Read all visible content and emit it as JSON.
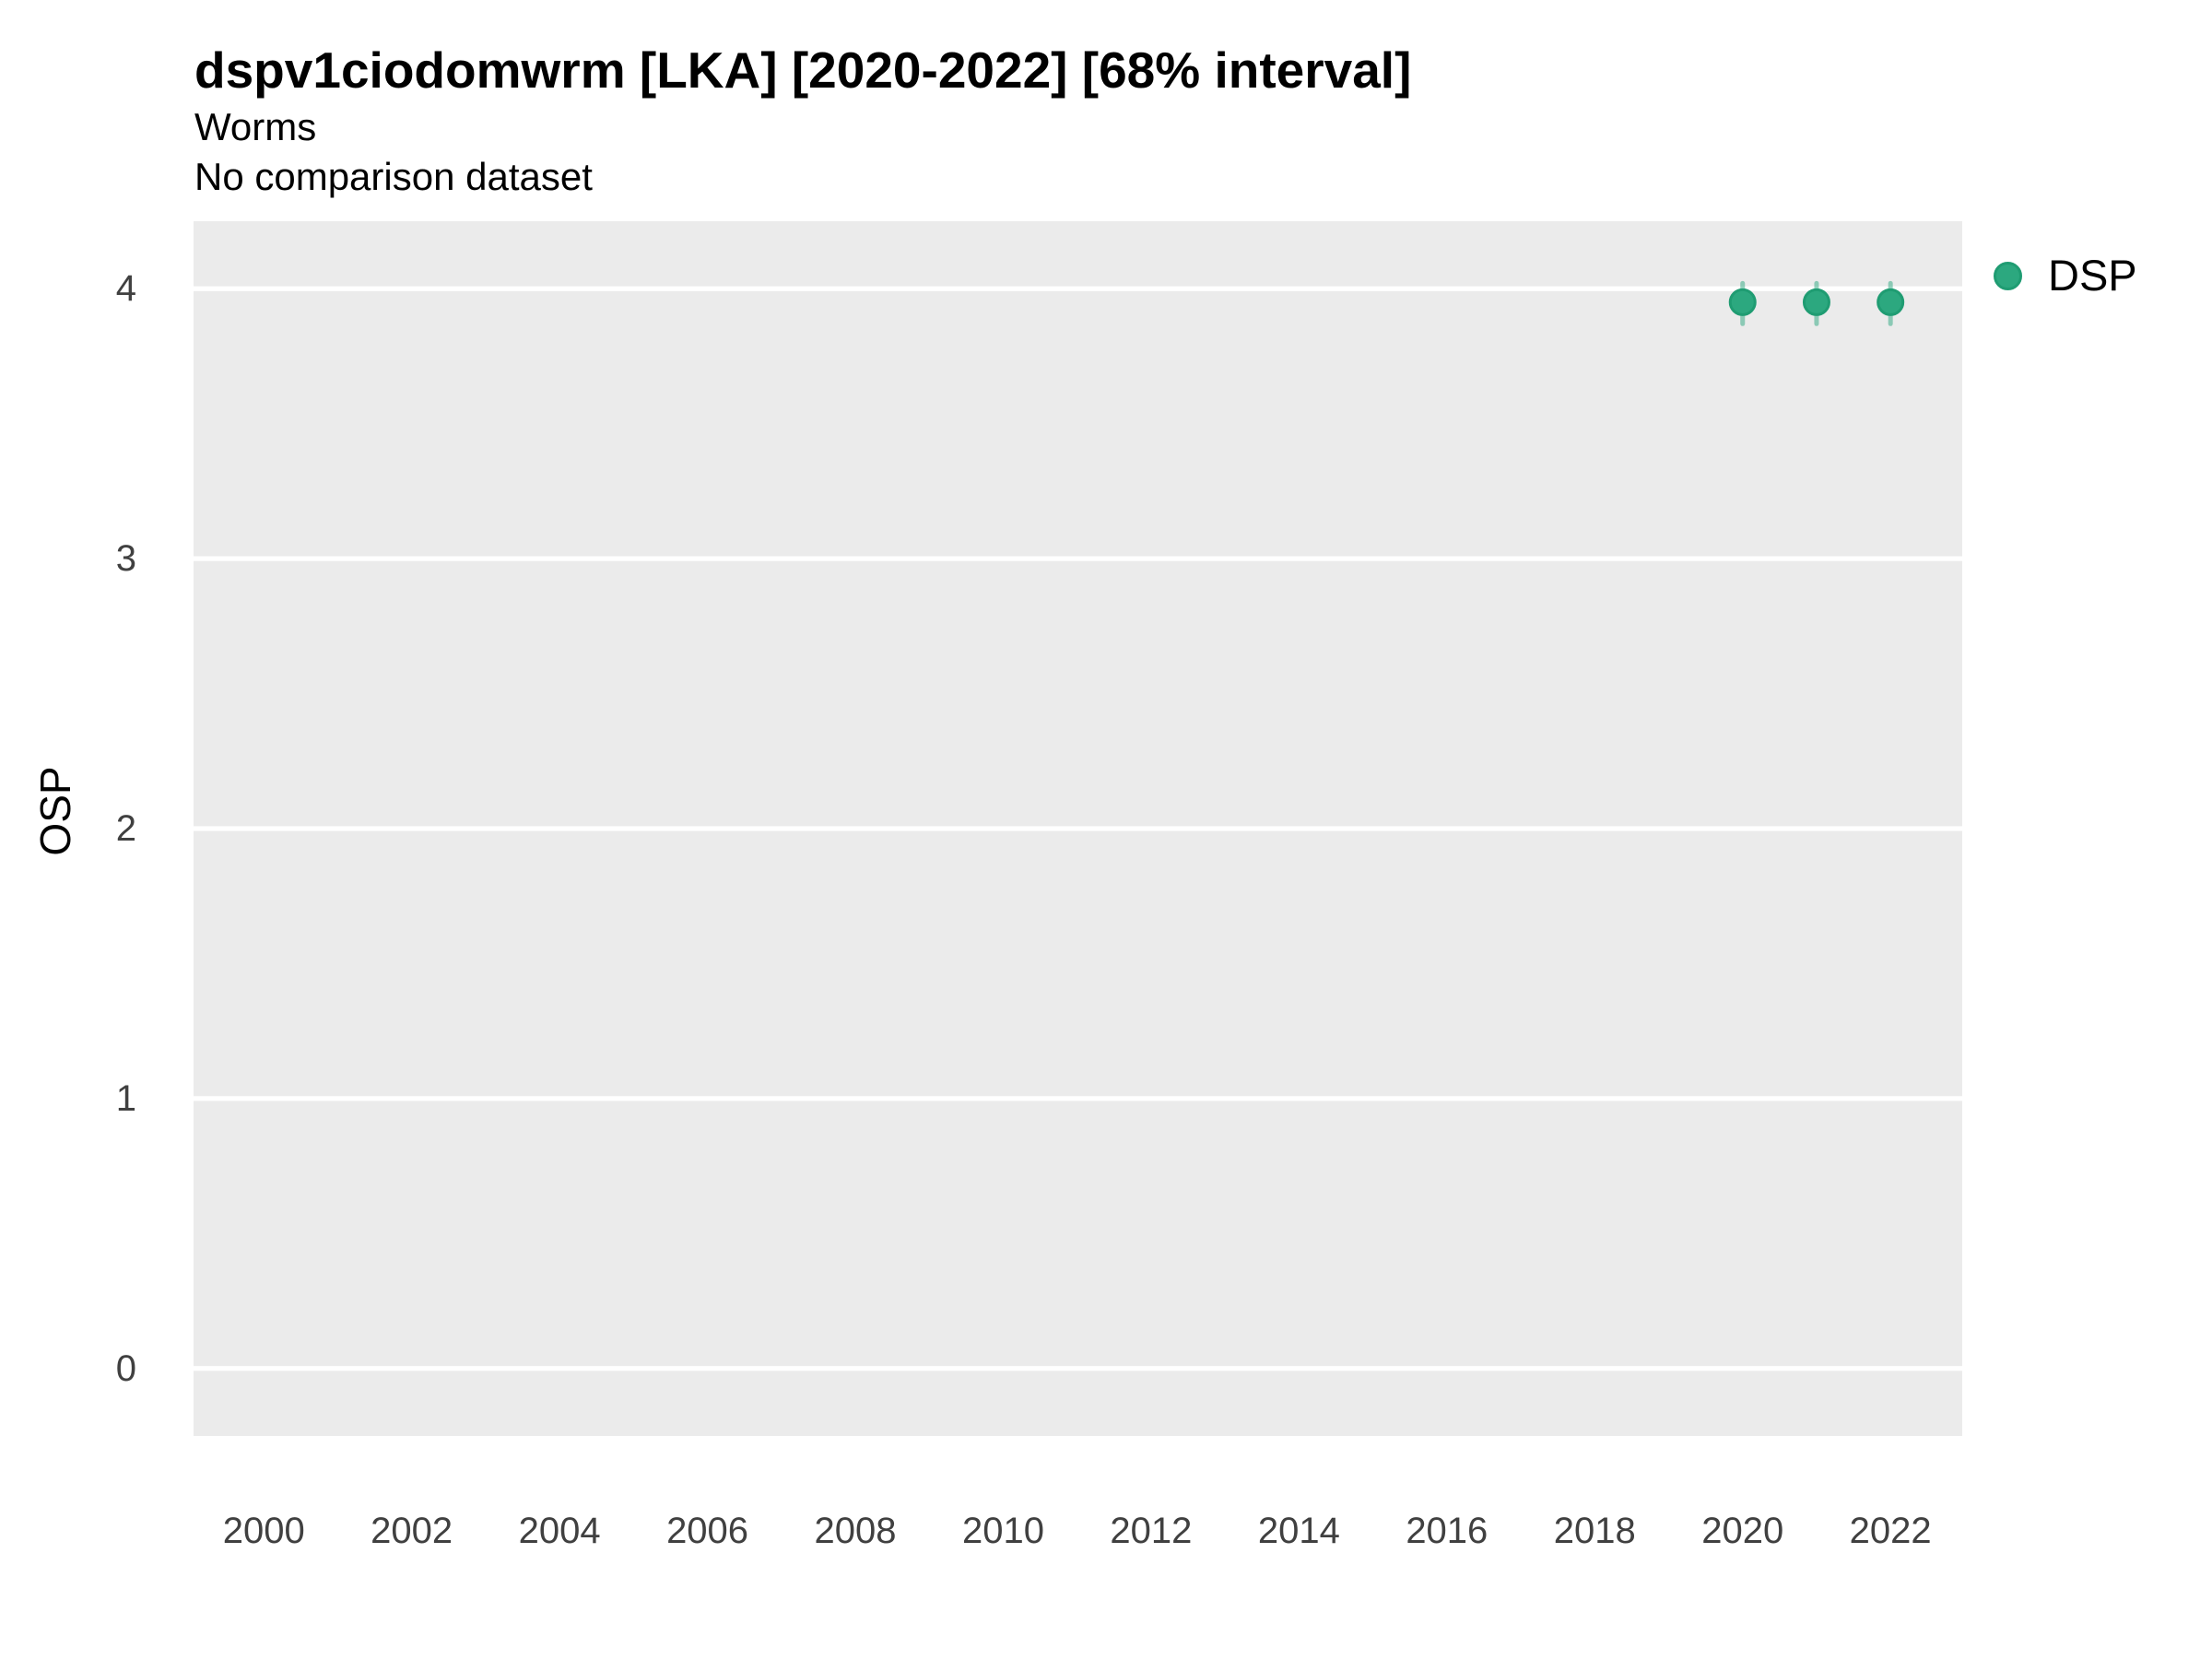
{
  "chart_data": {
    "type": "scatter",
    "title": "dspv1ciodomwrm [LKA] [2020-2022] [68% interval]",
    "subtitle": "Worms",
    "comparison_note": "No comparison dataset",
    "xlabel": "",
    "ylabel": "OSP",
    "x_ticks": [
      2000,
      2002,
      2004,
      2006,
      2008,
      2010,
      2012,
      2014,
      2016,
      2018,
      2020,
      2022
    ],
    "y_ticks": [
      0,
      1,
      2,
      3,
      4
    ],
    "xlim": [
      1999.05,
      2022.97
    ],
    "ylim": [
      -0.25,
      4.25
    ],
    "grid": "horizontal-major-only",
    "panel_color": "#EBEBEB",
    "gridline_color": "#FFFFFF",
    "legend_position": "right",
    "interval_level": "68%",
    "series": [
      {
        "name": "DSP",
        "color": "#2CA87F",
        "stroke_color": "#1F9C72",
        "interval_color": "rgba(44,168,127,0.5)",
        "points": [
          {
            "x": 2020,
            "y": 3.95,
            "lo": 3.87,
            "hi": 4.02
          },
          {
            "x": 2021,
            "y": 3.95,
            "lo": 3.87,
            "hi": 4.02
          },
          {
            "x": 2022,
            "y": 3.95,
            "lo": 3.87,
            "hi": 4.02
          }
        ]
      }
    ]
  }
}
